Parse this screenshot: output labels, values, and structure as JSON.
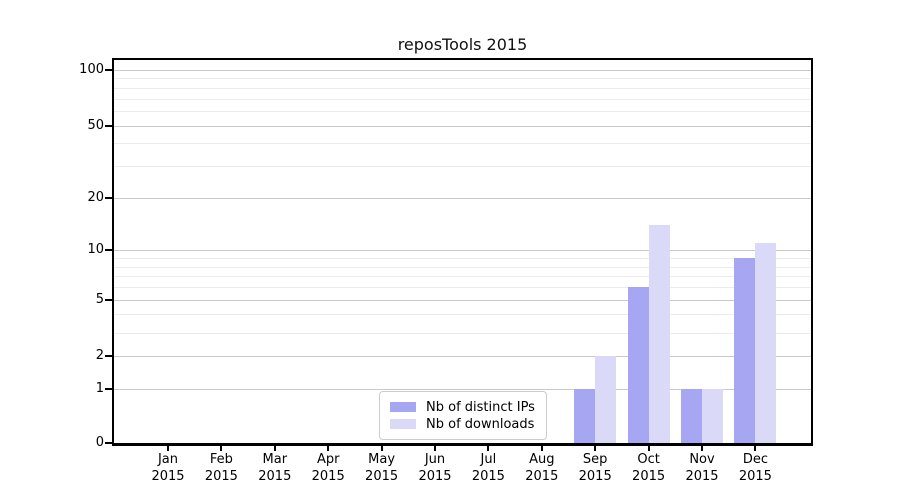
{
  "chart_data": {
    "type": "bar",
    "title": "reposTools 2015",
    "categories": [
      "Jan",
      "Feb",
      "Mar",
      "Apr",
      "May",
      "Jun",
      "Jul",
      "Aug",
      "Sep",
      "Oct",
      "Nov",
      "Dec"
    ],
    "x_sub_label": "2015",
    "series": [
      {
        "name": "Nb of distinct IPs",
        "color": "#a6a6f2",
        "values": [
          0,
          0,
          0,
          0,
          0,
          0,
          0,
          0,
          1,
          6,
          1,
          9
        ]
      },
      {
        "name": "Nb of downloads",
        "color": "#dadaf8",
        "values": [
          0,
          0,
          0,
          0,
          0,
          0,
          0,
          0,
          2,
          14,
          1,
          11
        ]
      }
    ],
    "xlabel": "",
    "ylabel": "",
    "y_axis": {
      "scale": "log1p",
      "ticks": [
        0,
        1,
        2,
        5,
        10,
        20,
        50,
        100
      ],
      "minor_ticks": [
        3,
        4,
        6,
        7,
        8,
        9,
        30,
        40,
        60,
        70,
        80,
        90
      ],
      "range": [
        0,
        113
      ]
    },
    "grid": "horizontal",
    "legend_position": "bottom-center"
  }
}
